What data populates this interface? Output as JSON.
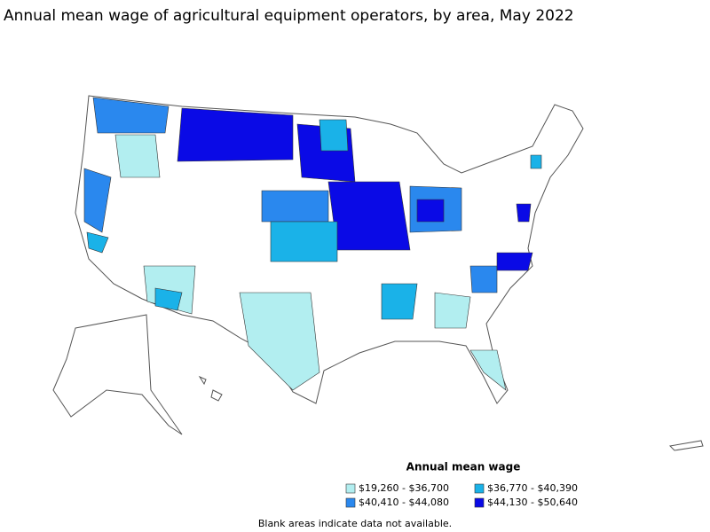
{
  "title": "Annual mean wage of agricultural equipment operators, by area, May 2022",
  "legend": {
    "title": "Annual mean wage",
    "items": [
      {
        "label": "$19,260 - $36,700",
        "color": "#b2eef0"
      },
      {
        "label": "$36,770 - $40,390",
        "color": "#1ab2e8"
      },
      {
        "label": "$40,410 - $44,080",
        "color": "#2a88ee"
      },
      {
        "label": "$44,130 - $50,640",
        "color": "#0a0ae6"
      }
    ]
  },
  "note": "Blank areas indicate data not available."
}
